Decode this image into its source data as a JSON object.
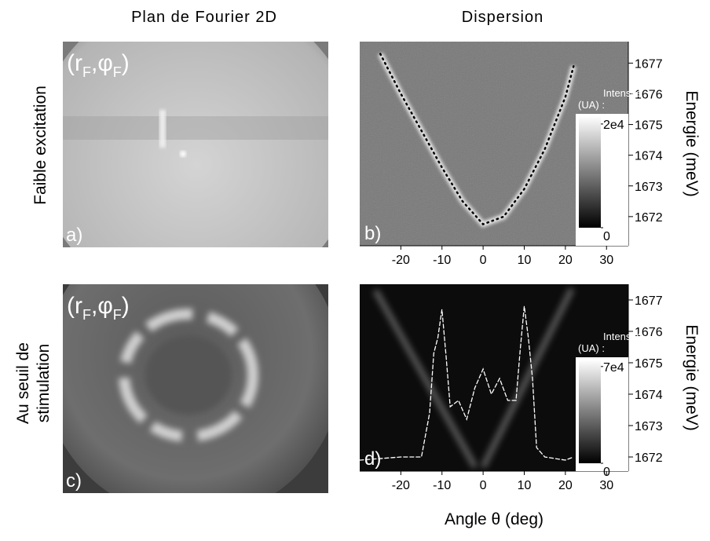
{
  "columns": [
    "Plan de Fourier 2D",
    "Dispersion"
  ],
  "rows": [
    [
      "Faible excitation"
    ],
    [
      "Au seuil de",
      "stimulation"
    ]
  ],
  "images": [
    {
      "panel_label": "a)",
      "coords": [
        "(r",
        "F",
        ",φ",
        "F",
        ")"
      ]
    },
    {
      "panel_label": "c)",
      "coords": [
        "(r",
        "F",
        ",φ",
        "F",
        ")"
      ]
    }
  ],
  "chart_data": [
    {
      "type": "line",
      "panel_label": "b)",
      "y_label": "Energie (meV)",
      "x": [
        -25,
        -20,
        -15,
        -10,
        -5,
        0,
        5,
        10,
        15,
        20,
        22
      ],
      "series": [
        {
          "color": "#000000",
          "style": "dotted",
          "values": [
            1677.3,
            1676.0,
            1674.8,
            1673.6,
            1672.5,
            1671.75,
            1672.0,
            1672.9,
            1674.2,
            1675.9,
            1676.9
          ]
        }
      ],
      "xlim": [
        -30,
        35.3
      ],
      "xticks": [
        -20,
        -10,
        0,
        10,
        20,
        30
      ],
      "ylim": [
        1671.05,
        1677.7
      ],
      "yticks": [
        1672,
        1673,
        1674,
        1675,
        1676,
        1677
      ],
      "colorbar": {
        "label": [
          "Intensité",
          "(UA) :"
        ],
        "lim": [
          0,
          21500
        ],
        "ticks": [
          {
            "value": 20000,
            "label": "2e4"
          },
          0
        ]
      }
    },
    {
      "type": "line",
      "panel_label": "d)",
      "y_label": "Energie (meV)",
      "x_label": "Angle θ (deg)",
      "x": [
        -30,
        -20,
        -15,
        -13,
        -12,
        -11,
        -10,
        -9,
        -8,
        -6,
        -4,
        -2,
        0,
        2,
        4,
        6,
        8,
        9,
        10,
        11,
        12,
        13,
        15,
        20,
        22
      ],
      "series": [
        {
          "color": "#ffffff",
          "style": "dashed",
          "values": [
            1671.9,
            1672.0,
            1672.0,
            1673.4,
            1675.3,
            1675.8,
            1676.7,
            1675.2,
            1673.6,
            1673.8,
            1673.2,
            1674.2,
            1674.8,
            1674.0,
            1674.5,
            1673.8,
            1673.8,
            1675.4,
            1676.8,
            1675.8,
            1674.5,
            1672.3,
            1672.0,
            1671.9,
            1672.0
          ]
        }
      ],
      "xlim": [
        -30,
        35.3
      ],
      "xticks": [
        -20,
        -10,
        0,
        10,
        20,
        30
      ],
      "ylim": [
        1671.55,
        1677.5
      ],
      "yticks": [
        1672,
        1673,
        1674,
        1675,
        1676,
        1677
      ],
      "colorbar": {
        "label": [
          "Intensité",
          "(UA) :"
        ],
        "lim": [
          0,
          75000
        ],
        "ticks": [
          {
            "value": 70000,
            "label": "7e4"
          },
          0
        ]
      }
    }
  ]
}
